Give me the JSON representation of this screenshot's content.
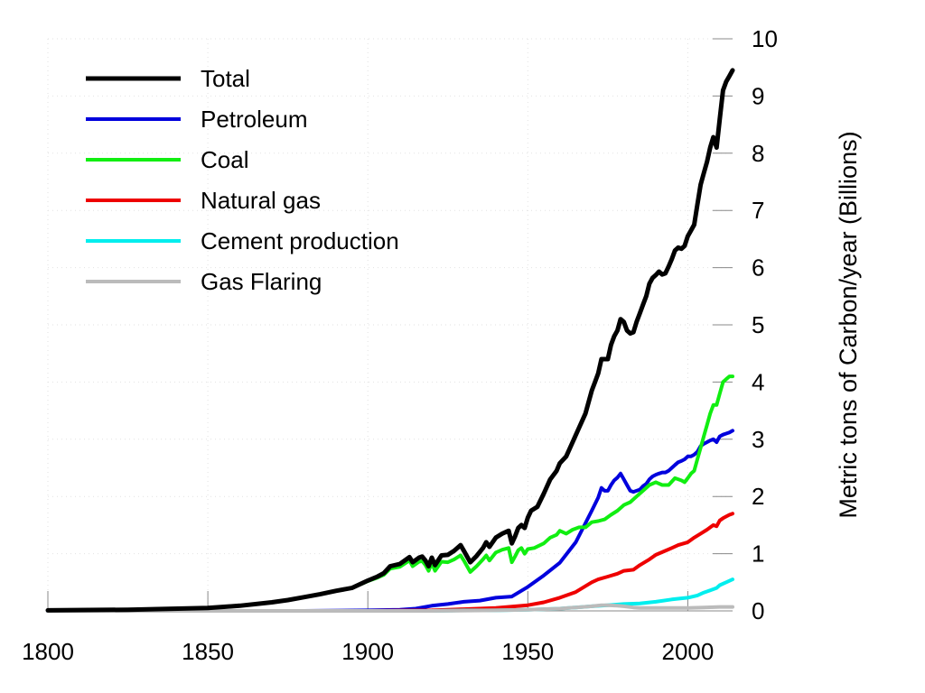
{
  "chart_data": {
    "type": "line",
    "title": "",
    "xlabel": "",
    "ylabel": "Metric tons of Carbon/year (Billions)",
    "xlim": [
      1800,
      2014
    ],
    "ylim": [
      0,
      10
    ],
    "grid": true,
    "legend_position": "top-left",
    "x_ticks": [
      1800,
      1850,
      1900,
      1950,
      2000
    ],
    "y_ticks": [
      0,
      1,
      2,
      3,
      4,
      5,
      6,
      7,
      8,
      9,
      10
    ],
    "series": [
      {
        "name": "Total",
        "color": "#000000",
        "points": [
          [
            1800,
            0.01
          ],
          [
            1825,
            0.02
          ],
          [
            1850,
            0.05
          ],
          [
            1860,
            0.09
          ],
          [
            1870,
            0.15
          ],
          [
            1875,
            0.19
          ],
          [
            1880,
            0.24
          ],
          [
            1885,
            0.29
          ],
          [
            1890,
            0.35
          ],
          [
            1895,
            0.4
          ],
          [
            1900,
            0.53
          ],
          [
            1903,
            0.6
          ],
          [
            1905,
            0.66
          ],
          [
            1907,
            0.78
          ],
          [
            1910,
            0.82
          ],
          [
            1913,
            0.94
          ],
          [
            1914,
            0.85
          ],
          [
            1916,
            0.93
          ],
          [
            1917,
            0.95
          ],
          [
            1918,
            0.88
          ],
          [
            1919,
            0.78
          ],
          [
            1920,
            0.93
          ],
          [
            1921,
            0.8
          ],
          [
            1923,
            0.97
          ],
          [
            1925,
            0.98
          ],
          [
            1927,
            1.05
          ],
          [
            1929,
            1.15
          ],
          [
            1930,
            1.05
          ],
          [
            1932,
            0.85
          ],
          [
            1934,
            0.96
          ],
          [
            1936,
            1.1
          ],
          [
            1937,
            1.2
          ],
          [
            1938,
            1.12
          ],
          [
            1940,
            1.28
          ],
          [
            1942,
            1.35
          ],
          [
            1944,
            1.4
          ],
          [
            1945,
            1.18
          ],
          [
            1946,
            1.3
          ],
          [
            1947,
            1.45
          ],
          [
            1948,
            1.5
          ],
          [
            1949,
            1.45
          ],
          [
            1950,
            1.63
          ],
          [
            1951,
            1.75
          ],
          [
            1953,
            1.82
          ],
          [
            1955,
            2.05
          ],
          [
            1957,
            2.3
          ],
          [
            1959,
            2.45
          ],
          [
            1960,
            2.58
          ],
          [
            1962,
            2.7
          ],
          [
            1964,
            2.95
          ],
          [
            1966,
            3.2
          ],
          [
            1968,
            3.45
          ],
          [
            1970,
            3.85
          ],
          [
            1971,
            4.0
          ],
          [
            1972,
            4.15
          ],
          [
            1973,
            4.4
          ],
          [
            1974,
            4.4
          ],
          [
            1975,
            4.4
          ],
          [
            1976,
            4.65
          ],
          [
            1977,
            4.8
          ],
          [
            1978,
            4.9
          ],
          [
            1979,
            5.1
          ],
          [
            1980,
            5.05
          ],
          [
            1981,
            4.9
          ],
          [
            1982,
            4.85
          ],
          [
            1983,
            4.87
          ],
          [
            1984,
            5.05
          ],
          [
            1985,
            5.2
          ],
          [
            1986,
            5.35
          ],
          [
            1987,
            5.5
          ],
          [
            1988,
            5.72
          ],
          [
            1989,
            5.82
          ],
          [
            1990,
            5.87
          ],
          [
            1991,
            5.93
          ],
          [
            1992,
            5.88
          ],
          [
            1993,
            5.9
          ],
          [
            1994,
            6.02
          ],
          [
            1995,
            6.15
          ],
          [
            1996,
            6.3
          ],
          [
            1997,
            6.35
          ],
          [
            1998,
            6.33
          ],
          [
            1999,
            6.38
          ],
          [
            2000,
            6.55
          ],
          [
            2001,
            6.65
          ],
          [
            2002,
            6.75
          ],
          [
            2003,
            7.1
          ],
          [
            2004,
            7.45
          ],
          [
            2005,
            7.65
          ],
          [
            2006,
            7.85
          ],
          [
            2007,
            8.1
          ],
          [
            2008,
            8.28
          ],
          [
            2009,
            8.1
          ],
          [
            2010,
            8.6
          ],
          [
            2011,
            9.1
          ],
          [
            2012,
            9.25
          ],
          [
            2013,
            9.35
          ],
          [
            2014,
            9.45
          ]
        ]
      },
      {
        "name": "Petroleum",
        "color": "#0000dd",
        "points": [
          [
            1800,
            0.0
          ],
          [
            1880,
            0.0
          ],
          [
            1900,
            0.01
          ],
          [
            1910,
            0.02
          ],
          [
            1915,
            0.04
          ],
          [
            1920,
            0.09
          ],
          [
            1925,
            0.12
          ],
          [
            1930,
            0.16
          ],
          [
            1935,
            0.18
          ],
          [
            1940,
            0.23
          ],
          [
            1945,
            0.25
          ],
          [
            1950,
            0.42
          ],
          [
            1955,
            0.62
          ],
          [
            1960,
            0.84
          ],
          [
            1965,
            1.2
          ],
          [
            1970,
            1.75
          ],
          [
            1972,
            1.98
          ],
          [
            1973,
            2.15
          ],
          [
            1974,
            2.1
          ],
          [
            1975,
            2.1
          ],
          [
            1976,
            2.2
          ],
          [
            1977,
            2.28
          ],
          [
            1978,
            2.33
          ],
          [
            1979,
            2.4
          ],
          [
            1980,
            2.3
          ],
          [
            1981,
            2.2
          ],
          [
            1982,
            2.1
          ],
          [
            1983,
            2.08
          ],
          [
            1984,
            2.1
          ],
          [
            1985,
            2.12
          ],
          [
            1986,
            2.18
          ],
          [
            1987,
            2.22
          ],
          [
            1988,
            2.3
          ],
          [
            1989,
            2.35
          ],
          [
            1990,
            2.38
          ],
          [
            1991,
            2.4
          ],
          [
            1992,
            2.42
          ],
          [
            1993,
            2.42
          ],
          [
            1994,
            2.45
          ],
          [
            1995,
            2.5
          ],
          [
            1996,
            2.55
          ],
          [
            1997,
            2.6
          ],
          [
            1998,
            2.62
          ],
          [
            1999,
            2.65
          ],
          [
            2000,
            2.7
          ],
          [
            2001,
            2.7
          ],
          [
            2002,
            2.73
          ],
          [
            2003,
            2.78
          ],
          [
            2004,
            2.88
          ],
          [
            2005,
            2.92
          ],
          [
            2006,
            2.95
          ],
          [
            2007,
            2.98
          ],
          [
            2008,
            3.0
          ],
          [
            2009,
            2.95
          ],
          [
            2010,
            3.05
          ],
          [
            2011,
            3.08
          ],
          [
            2012,
            3.1
          ],
          [
            2013,
            3.12
          ],
          [
            2014,
            3.15
          ]
        ]
      },
      {
        "name": "Coal",
        "color": "#11ee11",
        "points": [
          [
            1800,
            0.01
          ],
          [
            1825,
            0.02
          ],
          [
            1850,
            0.05
          ],
          [
            1860,
            0.09
          ],
          [
            1870,
            0.15
          ],
          [
            1875,
            0.19
          ],
          [
            1880,
            0.24
          ],
          [
            1885,
            0.29
          ],
          [
            1890,
            0.35
          ],
          [
            1895,
            0.4
          ],
          [
            1900,
            0.52
          ],
          [
            1903,
            0.58
          ],
          [
            1905,
            0.63
          ],
          [
            1907,
            0.74
          ],
          [
            1910,
            0.77
          ],
          [
            1913,
            0.88
          ],
          [
            1914,
            0.78
          ],
          [
            1916,
            0.86
          ],
          [
            1917,
            0.87
          ],
          [
            1918,
            0.8
          ],
          [
            1919,
            0.7
          ],
          [
            1920,
            0.84
          ],
          [
            1921,
            0.7
          ],
          [
            1923,
            0.86
          ],
          [
            1925,
            0.85
          ],
          [
            1927,
            0.9
          ],
          [
            1929,
            0.97
          ],
          [
            1930,
            0.88
          ],
          [
            1932,
            0.68
          ],
          [
            1934,
            0.78
          ],
          [
            1936,
            0.9
          ],
          [
            1937,
            0.97
          ],
          [
            1938,
            0.88
          ],
          [
            1940,
            1.02
          ],
          [
            1942,
            1.07
          ],
          [
            1944,
            1.1
          ],
          [
            1945,
            0.85
          ],
          [
            1946,
            0.95
          ],
          [
            1947,
            1.06
          ],
          [
            1948,
            1.1
          ],
          [
            1949,
            1.0
          ],
          [
            1950,
            1.08
          ],
          [
            1952,
            1.1
          ],
          [
            1955,
            1.18
          ],
          [
            1957,
            1.28
          ],
          [
            1959,
            1.33
          ],
          [
            1960,
            1.4
          ],
          [
            1962,
            1.35
          ],
          [
            1964,
            1.42
          ],
          [
            1966,
            1.46
          ],
          [
            1968,
            1.46
          ],
          [
            1970,
            1.55
          ],
          [
            1972,
            1.57
          ],
          [
            1974,
            1.6
          ],
          [
            1976,
            1.68
          ],
          [
            1978,
            1.75
          ],
          [
            1980,
            1.85
          ],
          [
            1982,
            1.9
          ],
          [
            1984,
            2.0
          ],
          [
            1986,
            2.1
          ],
          [
            1988,
            2.2
          ],
          [
            1990,
            2.25
          ],
          [
            1992,
            2.2
          ],
          [
            1994,
            2.2
          ],
          [
            1996,
            2.32
          ],
          [
            1998,
            2.28
          ],
          [
            1999,
            2.25
          ],
          [
            2000,
            2.32
          ],
          [
            2001,
            2.4
          ],
          [
            2002,
            2.45
          ],
          [
            2003,
            2.65
          ],
          [
            2004,
            2.85
          ],
          [
            2005,
            3.05
          ],
          [
            2006,
            3.25
          ],
          [
            2007,
            3.45
          ],
          [
            2008,
            3.6
          ],
          [
            2009,
            3.6
          ],
          [
            2010,
            3.8
          ],
          [
            2011,
            4.0
          ],
          [
            2012,
            4.05
          ],
          [
            2013,
            4.1
          ],
          [
            2014,
            4.1
          ]
        ]
      },
      {
        "name": "Natural gas",
        "color": "#ee0000",
        "points": [
          [
            1800,
            0.0
          ],
          [
            1900,
            0.0
          ],
          [
            1920,
            0.01
          ],
          [
            1930,
            0.03
          ],
          [
            1940,
            0.05
          ],
          [
            1950,
            0.1
          ],
          [
            1955,
            0.15
          ],
          [
            1960,
            0.23
          ],
          [
            1965,
            0.33
          ],
          [
            1970,
            0.5
          ],
          [
            1972,
            0.55
          ],
          [
            1975,
            0.6
          ],
          [
            1978,
            0.65
          ],
          [
            1980,
            0.7
          ],
          [
            1983,
            0.72
          ],
          [
            1985,
            0.8
          ],
          [
            1988,
            0.9
          ],
          [
            1990,
            0.98
          ],
          [
            1993,
            1.05
          ],
          [
            1995,
            1.1
          ],
          [
            1997,
            1.15
          ],
          [
            2000,
            1.2
          ],
          [
            2002,
            1.28
          ],
          [
            2004,
            1.35
          ],
          [
            2006,
            1.42
          ],
          [
            2008,
            1.5
          ],
          [
            2009,
            1.48
          ],
          [
            2010,
            1.58
          ],
          [
            2011,
            1.62
          ],
          [
            2012,
            1.65
          ],
          [
            2013,
            1.68
          ],
          [
            2014,
            1.7
          ]
        ]
      },
      {
        "name": "Cement production",
        "color": "#00eeee",
        "points": [
          [
            1800,
            0.0
          ],
          [
            1920,
            0.0
          ],
          [
            1930,
            0.01
          ],
          [
            1940,
            0.01
          ],
          [
            1950,
            0.02
          ],
          [
            1955,
            0.03
          ],
          [
            1960,
            0.04
          ],
          [
            1965,
            0.06
          ],
          [
            1970,
            0.08
          ],
          [
            1975,
            0.1
          ],
          [
            1980,
            0.12
          ],
          [
            1985,
            0.13
          ],
          [
            1990,
            0.16
          ],
          [
            1995,
            0.2
          ],
          [
            2000,
            0.23
          ],
          [
            2003,
            0.27
          ],
          [
            2005,
            0.32
          ],
          [
            2007,
            0.36
          ],
          [
            2009,
            0.4
          ],
          [
            2010,
            0.45
          ],
          [
            2012,
            0.5
          ],
          [
            2014,
            0.55
          ]
        ]
      },
      {
        "name": "Gas Flaring",
        "color": "#bbbbbb",
        "points": [
          [
            1800,
            0.0
          ],
          [
            1920,
            0.0
          ],
          [
            1940,
            0.01
          ],
          [
            1950,
            0.02
          ],
          [
            1955,
            0.03
          ],
          [
            1960,
            0.04
          ],
          [
            1965,
            0.06
          ],
          [
            1970,
            0.08
          ],
          [
            1973,
            0.1
          ],
          [
            1975,
            0.1
          ],
          [
            1978,
            0.09
          ],
          [
            1980,
            0.08
          ],
          [
            1983,
            0.06
          ],
          [
            1985,
            0.05
          ],
          [
            1990,
            0.05
          ],
          [
            1995,
            0.05
          ],
          [
            2000,
            0.05
          ],
          [
            2005,
            0.06
          ],
          [
            2010,
            0.07
          ],
          [
            2014,
            0.07
          ]
        ]
      }
    ]
  }
}
